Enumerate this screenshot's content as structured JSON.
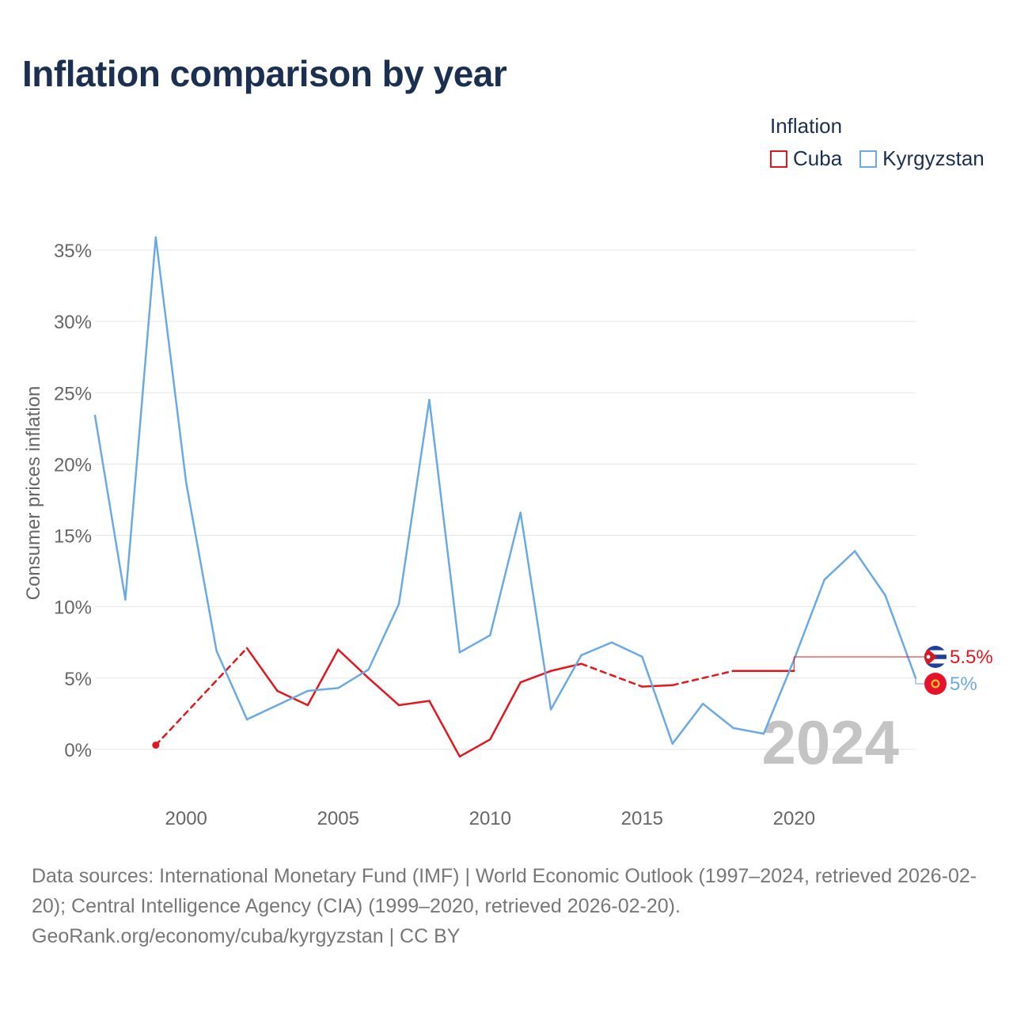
{
  "title": "Inflation comparison by year",
  "legend": {
    "title": "Inflation",
    "items": [
      {
        "label": "Cuba",
        "color": "#e4161d"
      },
      {
        "label": "Kyrgyzstan",
        "color": "#6aaae4"
      }
    ]
  },
  "chart_data": {
    "type": "line",
    "title": "Inflation comparison by year",
    "xlabel": "",
    "ylabel": "Consumer prices inflation",
    "xlim": [
      1997,
      2024
    ],
    "ylim": [
      -3.5,
      37
    ],
    "xticks": [
      2000,
      2005,
      2010,
      2015,
      2020
    ],
    "xtick_labels": [
      "2000",
      "2005",
      "2010",
      "2015",
      "2020"
    ],
    "yticks": [
      0,
      5,
      10,
      15,
      20,
      25,
      30,
      35
    ],
    "ytick_labels": [
      "0%",
      "5%",
      "10%",
      "15%",
      "20%",
      "25%",
      "30%",
      "35%"
    ],
    "grid": true,
    "watermark_year": "2024",
    "series": [
      {
        "name": "Cuba",
        "color": "#e4161d",
        "x": [
          1999,
          2000,
          2001,
          2002,
          2003,
          2004,
          2005,
          2006,
          2007,
          2008,
          2009,
          2010,
          2011,
          2012,
          2013,
          2014,
          2015,
          2016,
          2017,
          2018,
          2019,
          2020
        ],
        "values": [
          0.3,
          null,
          null,
          7.1,
          4.1,
          3.1,
          7.0,
          5.0,
          3.1,
          3.4,
          -0.5,
          0.7,
          4.7,
          5.5,
          6.0,
          null,
          4.4,
          4.5,
          null,
          5.5,
          5.5,
          5.5
        ],
        "estimated_segments": [
          [
            1999,
            2002
          ],
          [
            2013,
            2015
          ],
          [
            2016,
            2018
          ]
        ],
        "end_label": "5.5%",
        "end_value": 5.5,
        "flag": "cuba-flag"
      },
      {
        "name": "Kyrgyzstan",
        "color": "#6aaae4",
        "x": [
          1997,
          1998,
          1999,
          2000,
          2001,
          2002,
          2003,
          2004,
          2005,
          2006,
          2007,
          2008,
          2009,
          2010,
          2011,
          2012,
          2013,
          2014,
          2015,
          2016,
          2017,
          2018,
          2019,
          2020,
          2021,
          2022,
          2023,
          2024
        ],
        "values": [
          23.4,
          10.5,
          35.9,
          18.7,
          6.9,
          2.1,
          3.1,
          4.1,
          4.3,
          5.6,
          10.2,
          24.5,
          6.8,
          8.0,
          16.6,
          2.8,
          6.6,
          7.5,
          6.5,
          0.4,
          3.2,
          1.5,
          1.1,
          6.3,
          11.9,
          13.9,
          10.8,
          5.0
        ],
        "end_label": "5%",
        "end_value": 5.0,
        "flag": "kyrgyzstan-flag"
      }
    ]
  },
  "footer": {
    "sources": "Data sources: International Monetary Fund (IMF) | World Economic Outlook (1997–2024, retrieved 2026-02-20); Central Intelligence Agency (CIA) (1999–2020, retrieved 2026-02-20).",
    "credit": "GeoRank.org/economy/cuba/kyrgyzstan | CC BY"
  }
}
